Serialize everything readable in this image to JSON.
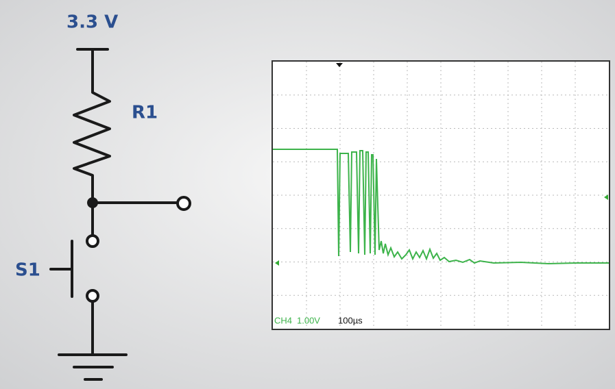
{
  "circuit": {
    "supply": "3.3 V",
    "resistor": "R1",
    "switch": "S1"
  },
  "scope": {
    "channel": "CH4",
    "volts_per_div": "1.00V",
    "time_per_div": "100µs"
  }
}
